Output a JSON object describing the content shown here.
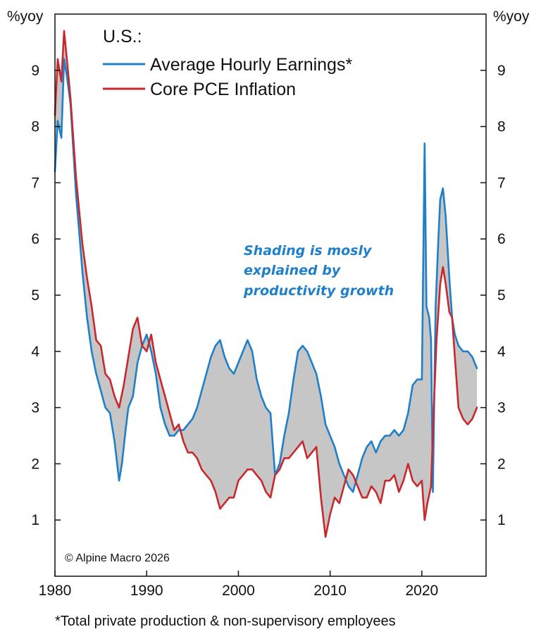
{
  "chart_data": {
    "type": "line",
    "title": "U.S.:",
    "ylabel_left": "%yoy",
    "ylabel_right": "%yoy",
    "x_ticks": [
      1980,
      1990,
      2000,
      2010,
      2020
    ],
    "y_ticks": [
      1,
      2,
      3,
      4,
      5,
      6,
      7,
      8,
      9
    ],
    "xlim": [
      1980,
      2027
    ],
    "ylim": [
      0,
      10
    ],
    "grid": false,
    "legend_position": "top-left",
    "series": [
      {
        "name": "Average Hourly Earnings*",
        "color": "#1f7fc9",
        "points": [
          [
            1980.0,
            7.2
          ],
          [
            1980.3,
            8.1
          ],
          [
            1980.7,
            7.8
          ],
          [
            1981.0,
            9.2
          ],
          [
            1981.3,
            8.9
          ],
          [
            1981.7,
            8.4
          ],
          [
            1982.0,
            7.6
          ],
          [
            1982.3,
            6.8
          ],
          [
            1982.7,
            6.0
          ],
          [
            1983.0,
            5.4
          ],
          [
            1983.5,
            4.6
          ],
          [
            1984.0,
            4.0
          ],
          [
            1984.5,
            3.6
          ],
          [
            1985.0,
            3.3
          ],
          [
            1985.5,
            3.0
          ],
          [
            1986.0,
            2.9
          ],
          [
            1986.5,
            2.4
          ],
          [
            1987.0,
            1.7
          ],
          [
            1987.3,
            2.0
          ],
          [
            1987.7,
            2.6
          ],
          [
            1988.0,
            3.0
          ],
          [
            1988.5,
            3.2
          ],
          [
            1989.0,
            3.8
          ],
          [
            1989.5,
            4.1
          ],
          [
            1990.0,
            4.3
          ],
          [
            1990.5,
            4.0
          ],
          [
            1991.0,
            3.6
          ],
          [
            1991.5,
            3.0
          ],
          [
            1992.0,
            2.7
          ],
          [
            1992.5,
            2.5
          ],
          [
            1993.0,
            2.5
          ],
          [
            1993.5,
            2.6
          ],
          [
            1994.0,
            2.6
          ],
          [
            1994.5,
            2.7
          ],
          [
            1995.0,
            2.8
          ],
          [
            1995.5,
            3.0
          ],
          [
            1996.0,
            3.3
          ],
          [
            1996.5,
            3.6
          ],
          [
            1997.0,
            3.9
          ],
          [
            1997.5,
            4.1
          ],
          [
            1998.0,
            4.2
          ],
          [
            1998.5,
            3.9
          ],
          [
            1999.0,
            3.7
          ],
          [
            1999.5,
            3.6
          ],
          [
            2000.0,
            3.8
          ],
          [
            2000.5,
            4.0
          ],
          [
            2001.0,
            4.2
          ],
          [
            2001.5,
            4.0
          ],
          [
            2002.0,
            3.5
          ],
          [
            2002.5,
            3.2
          ],
          [
            2003.0,
            3.0
          ],
          [
            2003.5,
            2.9
          ],
          [
            2004.0,
            1.8
          ],
          [
            2004.5,
            2.0
          ],
          [
            2005.0,
            2.5
          ],
          [
            2005.5,
            2.9
          ],
          [
            2006.0,
            3.5
          ],
          [
            2006.5,
            4.0
          ],
          [
            2007.0,
            4.1
          ],
          [
            2007.5,
            4.0
          ],
          [
            2008.0,
            3.8
          ],
          [
            2008.5,
            3.6
          ],
          [
            2009.0,
            3.2
          ],
          [
            2009.5,
            2.7
          ],
          [
            2010.0,
            2.5
          ],
          [
            2010.5,
            2.3
          ],
          [
            2011.0,
            2.0
          ],
          [
            2011.5,
            1.8
          ],
          [
            2012.0,
            1.6
          ],
          [
            2012.5,
            1.5
          ],
          [
            2013.0,
            1.8
          ],
          [
            2013.5,
            2.1
          ],
          [
            2014.0,
            2.3
          ],
          [
            2014.5,
            2.4
          ],
          [
            2015.0,
            2.2
          ],
          [
            2015.5,
            2.4
          ],
          [
            2016.0,
            2.5
          ],
          [
            2016.5,
            2.5
          ],
          [
            2017.0,
            2.6
          ],
          [
            2017.5,
            2.5
          ],
          [
            2018.0,
            2.6
          ],
          [
            2018.5,
            2.9
          ],
          [
            2019.0,
            3.4
          ],
          [
            2019.5,
            3.5
          ],
          [
            2020.0,
            3.5
          ],
          [
            2020.3,
            7.7
          ],
          [
            2020.5,
            4.8
          ],
          [
            2020.8,
            4.6
          ],
          [
            2021.0,
            4.2
          ],
          [
            2021.2,
            1.5
          ],
          [
            2021.5,
            4.8
          ],
          [
            2021.8,
            6.0
          ],
          [
            2022.0,
            6.7
          ],
          [
            2022.3,
            6.9
          ],
          [
            2022.6,
            6.4
          ],
          [
            2023.0,
            5.3
          ],
          [
            2023.3,
            4.6
          ],
          [
            2023.6,
            4.3
          ],
          [
            2024.0,
            4.1
          ],
          [
            2024.5,
            4.0
          ],
          [
            2025.0,
            4.0
          ],
          [
            2025.5,
            3.9
          ],
          [
            2026.0,
            3.7
          ]
        ]
      },
      {
        "name": "Core PCE Inflation",
        "color": "#c8282e",
        "points": [
          [
            1980.0,
            8.2
          ],
          [
            1980.3,
            9.2
          ],
          [
            1980.7,
            8.8
          ],
          [
            1981.0,
            9.7
          ],
          [
            1981.3,
            9.2
          ],
          [
            1981.7,
            8.5
          ],
          [
            1982.0,
            7.8
          ],
          [
            1982.3,
            7.1
          ],
          [
            1982.7,
            6.4
          ],
          [
            1983.0,
            5.9
          ],
          [
            1983.5,
            5.3
          ],
          [
            1984.0,
            4.8
          ],
          [
            1984.5,
            4.2
          ],
          [
            1985.0,
            4.1
          ],
          [
            1985.5,
            3.6
          ],
          [
            1986.0,
            3.5
          ],
          [
            1986.5,
            3.2
          ],
          [
            1987.0,
            3.0
          ],
          [
            1987.5,
            3.4
          ],
          [
            1988.0,
            3.9
          ],
          [
            1988.5,
            4.4
          ],
          [
            1989.0,
            4.6
          ],
          [
            1989.5,
            4.1
          ],
          [
            1990.0,
            4.0
          ],
          [
            1990.5,
            4.3
          ],
          [
            1991.0,
            3.8
          ],
          [
            1991.5,
            3.5
          ],
          [
            1992.0,
            3.2
          ],
          [
            1992.5,
            2.9
          ],
          [
            1993.0,
            2.6
          ],
          [
            1993.5,
            2.7
          ],
          [
            1994.0,
            2.4
          ],
          [
            1994.5,
            2.2
          ],
          [
            1995.0,
            2.2
          ],
          [
            1995.5,
            2.1
          ],
          [
            1996.0,
            1.9
          ],
          [
            1996.5,
            1.8
          ],
          [
            1997.0,
            1.7
          ],
          [
            1997.5,
            1.5
          ],
          [
            1998.0,
            1.2
          ],
          [
            1998.5,
            1.3
          ],
          [
            1999.0,
            1.4
          ],
          [
            1999.5,
            1.4
          ],
          [
            2000.0,
            1.7
          ],
          [
            2000.5,
            1.8
          ],
          [
            2001.0,
            1.9
          ],
          [
            2001.5,
            1.9
          ],
          [
            2002.0,
            1.8
          ],
          [
            2002.5,
            1.7
          ],
          [
            2003.0,
            1.5
          ],
          [
            2003.5,
            1.4
          ],
          [
            2004.0,
            1.8
          ],
          [
            2004.5,
            1.9
          ],
          [
            2005.0,
            2.1
          ],
          [
            2005.5,
            2.1
          ],
          [
            2006.0,
            2.2
          ],
          [
            2006.5,
            2.3
          ],
          [
            2007.0,
            2.4
          ],
          [
            2007.5,
            2.1
          ],
          [
            2008.0,
            2.2
          ],
          [
            2008.5,
            2.3
          ],
          [
            2009.0,
            1.4
          ],
          [
            2009.5,
            0.7
          ],
          [
            2010.0,
            1.1
          ],
          [
            2010.5,
            1.4
          ],
          [
            2011.0,
            1.3
          ],
          [
            2011.5,
            1.6
          ],
          [
            2012.0,
            1.9
          ],
          [
            2012.5,
            1.8
          ],
          [
            2013.0,
            1.6
          ],
          [
            2013.5,
            1.4
          ],
          [
            2014.0,
            1.4
          ],
          [
            2014.5,
            1.6
          ],
          [
            2015.0,
            1.5
          ],
          [
            2015.5,
            1.3
          ],
          [
            2016.0,
            1.7
          ],
          [
            2016.5,
            1.7
          ],
          [
            2017.0,
            1.8
          ],
          [
            2017.5,
            1.5
          ],
          [
            2018.0,
            1.7
          ],
          [
            2018.5,
            2.0
          ],
          [
            2019.0,
            1.7
          ],
          [
            2019.5,
            1.6
          ],
          [
            2020.0,
            1.7
          ],
          [
            2020.3,
            1.0
          ],
          [
            2020.6,
            1.3
          ],
          [
            2021.0,
            1.6
          ],
          [
            2021.3,
            3.0
          ],
          [
            2021.6,
            4.2
          ],
          [
            2022.0,
            5.2
          ],
          [
            2022.3,
            5.5
          ],
          [
            2022.6,
            5.2
          ],
          [
            2023.0,
            4.7
          ],
          [
            2023.3,
            4.6
          ],
          [
            2023.6,
            3.9
          ],
          [
            2024.0,
            3.0
          ],
          [
            2024.5,
            2.8
          ],
          [
            2025.0,
            2.7
          ],
          [
            2025.5,
            2.8
          ],
          [
            2026.0,
            3.0
          ]
        ]
      }
    ]
  },
  "legend": {
    "title": "U.S.:",
    "items": [
      {
        "label": "Average Hourly Earnings*",
        "color": "#1f7fc9"
      },
      {
        "label": "Core PCE Inflation",
        "color": "#c8282e"
      }
    ]
  },
  "annotation": {
    "lines": [
      "Shading is mosly",
      "explained by",
      "productivity growth"
    ],
    "color": "#1f7fc9"
  },
  "shading_color": "#c6c6c6",
  "copyright": "© Alpine Macro 2026",
  "footnote": "*Total private production & non-supervisory employees"
}
